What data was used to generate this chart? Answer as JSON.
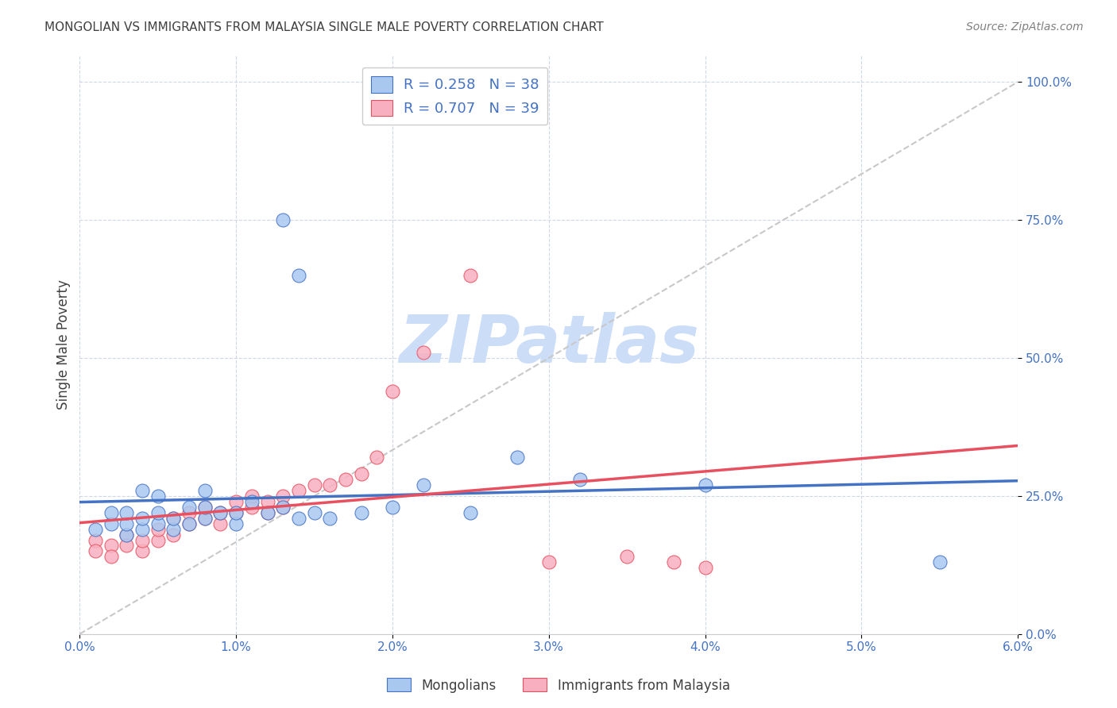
{
  "title": "MONGOLIAN VS IMMIGRANTS FROM MALAYSIA SINGLE MALE POVERTY CORRELATION CHART",
  "source": "Source: ZipAtlas.com",
  "xlabel_ticks": [
    "0.0%",
    "1.0%",
    "2.0%",
    "3.0%",
    "4.0%",
    "5.0%",
    "6.0%"
  ],
  "ylabel_ticks": [
    "0.0%",
    "25.0%",
    "50.0%",
    "75.0%",
    "100.0%"
  ],
  "ylabel_label": "Single Male Poverty",
  "xlim": [
    0.0,
    0.06
  ],
  "ylim": [
    0.0,
    1.05
  ],
  "mongolian_R": 0.258,
  "mongolian_N": 38,
  "malaysia_R": 0.707,
  "malaysia_N": 39,
  "mongolian_color": "#a8c8f0",
  "malaysia_color": "#f8b0c0",
  "mongolian_line_color": "#4472c4",
  "malaysia_line_color": "#e8506080",
  "malaysia_line_solid": "#e85060",
  "diagonal_line_color": "#c8c8c8",
  "background_color": "#ffffff",
  "grid_color": "#d0d8e8",
  "title_color": "#404040",
  "source_color": "#808080",
  "legend_text_color": "#4472c4",
  "watermark_color": "#ccddf8",
  "mongolian_x": [
    0.001,
    0.002,
    0.002,
    0.003,
    0.003,
    0.003,
    0.004,
    0.004,
    0.004,
    0.005,
    0.005,
    0.005,
    0.006,
    0.006,
    0.007,
    0.007,
    0.008,
    0.008,
    0.008,
    0.009,
    0.01,
    0.01,
    0.011,
    0.012,
    0.013,
    0.014,
    0.015,
    0.016,
    0.018,
    0.02,
    0.022,
    0.025,
    0.028,
    0.032,
    0.04,
    0.055,
    0.013,
    0.014
  ],
  "mongolian_y": [
    0.19,
    0.2,
    0.22,
    0.18,
    0.2,
    0.22,
    0.19,
    0.21,
    0.26,
    0.2,
    0.22,
    0.25,
    0.19,
    0.21,
    0.2,
    0.23,
    0.21,
    0.23,
    0.26,
    0.22,
    0.2,
    0.22,
    0.24,
    0.22,
    0.23,
    0.21,
    0.22,
    0.21,
    0.22,
    0.23,
    0.27,
    0.22,
    0.32,
    0.28,
    0.27,
    0.13,
    0.75,
    0.65
  ],
  "malaysia_x": [
    0.001,
    0.001,
    0.002,
    0.002,
    0.003,
    0.003,
    0.004,
    0.004,
    0.005,
    0.005,
    0.006,
    0.006,
    0.007,
    0.007,
    0.008,
    0.008,
    0.009,
    0.009,
    0.01,
    0.01,
    0.011,
    0.011,
    0.012,
    0.012,
    0.013,
    0.013,
    0.014,
    0.015,
    0.016,
    0.017,
    0.018,
    0.019,
    0.02,
    0.022,
    0.025,
    0.03,
    0.035,
    0.038,
    0.04
  ],
  "malaysia_y": [
    0.17,
    0.15,
    0.16,
    0.14,
    0.18,
    0.16,
    0.15,
    0.17,
    0.17,
    0.19,
    0.18,
    0.21,
    0.2,
    0.22,
    0.21,
    0.23,
    0.2,
    0.22,
    0.22,
    0.24,
    0.23,
    0.25,
    0.22,
    0.24,
    0.23,
    0.25,
    0.26,
    0.27,
    0.27,
    0.28,
    0.29,
    0.32,
    0.44,
    0.51,
    0.65,
    0.13,
    0.14,
    0.13,
    0.12
  ]
}
